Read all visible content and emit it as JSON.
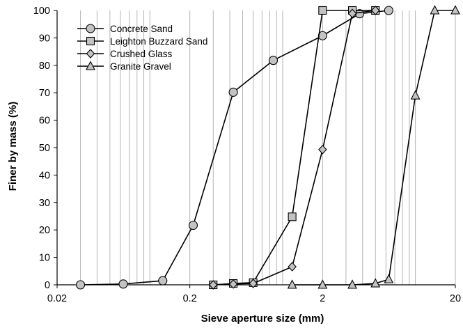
{
  "chart_data": {
    "type": "line",
    "xlabel": "Sieve aperture size (mm)",
    "ylabel": "Finer by mass (%)",
    "x_scale": "log",
    "xlim": [
      0.02,
      20
    ],
    "ylim": [
      0,
      100
    ],
    "x_tick_labels": [
      "0.02",
      "0.2",
      "2",
      "20"
    ],
    "x_ticks": [
      0.02,
      0.2,
      2,
      20
    ],
    "y_ticks": [
      0,
      10,
      20,
      30,
      40,
      50,
      60,
      70,
      80,
      90,
      100
    ],
    "grid": "vertical log grid lines",
    "legend_position": "top-left",
    "series": [
      {
        "name": "Concrete Sand",
        "marker": "circle",
        "points": [
          [
            0.03,
            0
          ],
          [
            0.063,
            0.3
          ],
          [
            0.125,
            1.5
          ],
          [
            0.212,
            21.7
          ],
          [
            0.425,
            70.2
          ],
          [
            0.85,
            81.8
          ],
          [
            2.0,
            90.8
          ],
          [
            3.8,
            98.8
          ],
          [
            6.3,
            100
          ]
        ]
      },
      {
        "name": "Leighton Buzzard Sand",
        "marker": "square",
        "points": [
          [
            0.3,
            0
          ],
          [
            0.425,
            0.5
          ],
          [
            0.6,
            0.8
          ],
          [
            1.18,
            24.8
          ],
          [
            2.0,
            100
          ],
          [
            3.35,
            100
          ],
          [
            5.0,
            100
          ]
        ]
      },
      {
        "name": "Crushed Glass",
        "marker": "diamond",
        "points": [
          [
            0.3,
            0
          ],
          [
            0.425,
            0.3
          ],
          [
            0.6,
            0.5
          ],
          [
            1.18,
            6.6
          ],
          [
            2.0,
            49.3
          ],
          [
            3.35,
            98.9
          ],
          [
            5.0,
            100
          ]
        ]
      },
      {
        "name": "Granite Gravel",
        "marker": "triangle",
        "points": [
          [
            1.18,
            0
          ],
          [
            2.0,
            0
          ],
          [
            3.35,
            0
          ],
          [
            5.0,
            0.5
          ],
          [
            6.3,
            2.0
          ],
          [
            10.0,
            69.0
          ],
          [
            14.0,
            100
          ],
          [
            20.0,
            100
          ]
        ]
      }
    ]
  }
}
